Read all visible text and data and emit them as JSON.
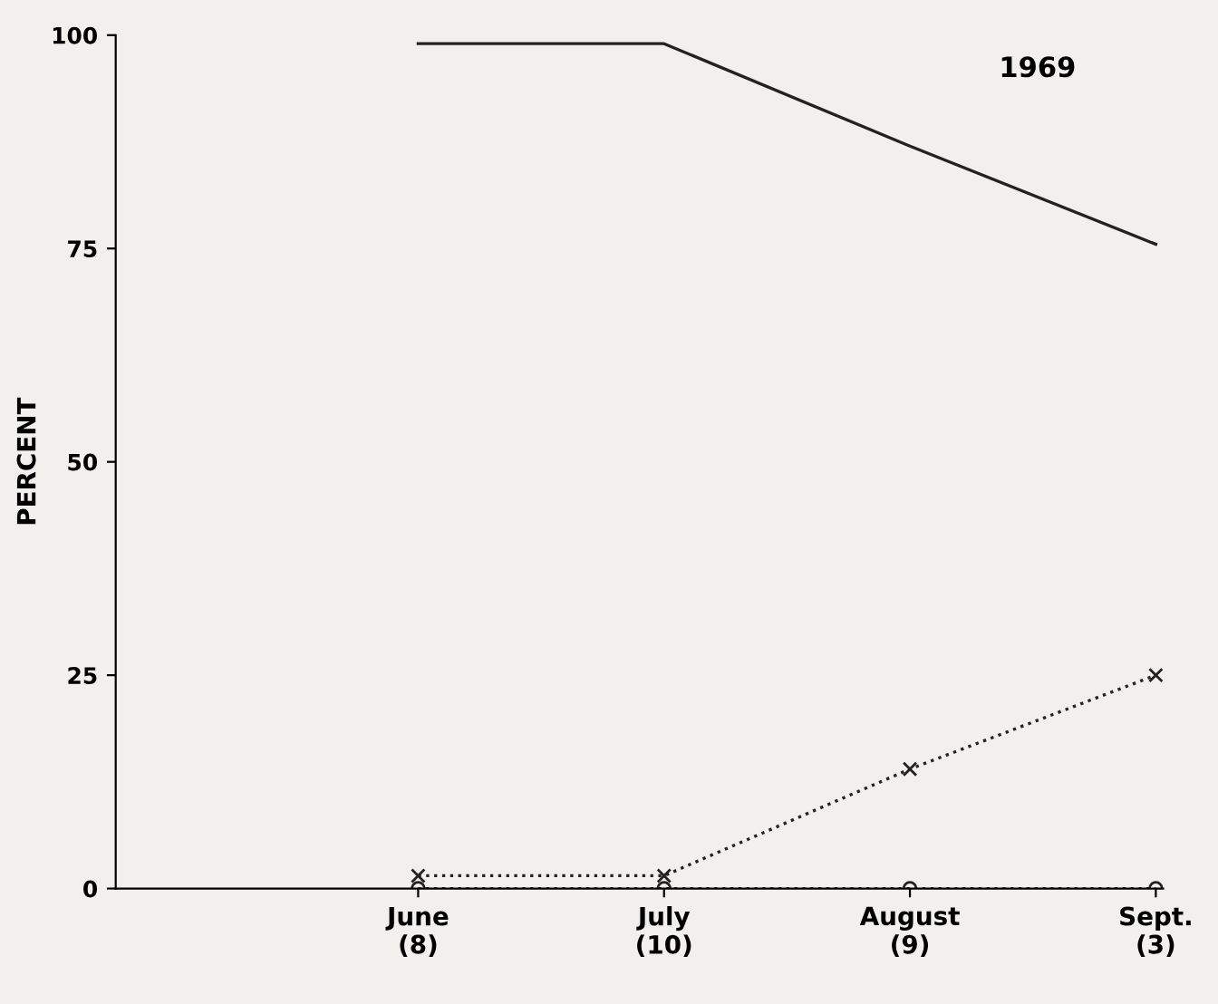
{
  "chart_data": {
    "type": "line",
    "ylabel": "PERCENT",
    "annotations": [
      "1969"
    ],
    "categories": [
      "June\n(8)",
      "July\n(10)",
      "August\n(9)",
      "Sept.\n(3)"
    ],
    "series": [
      {
        "color": "#222222",
        "values": [
          99,
          99,
          87,
          75.5
        ],
        "marker": "none",
        "line_style": "solid"
      },
      {
        "color": "#222222",
        "values": [
          1.5,
          1.5,
          14,
          25
        ],
        "marker": "cross",
        "line_style": "dotted"
      },
      {
        "color": "#222222",
        "values": [
          0,
          0,
          0,
          0
        ],
        "marker": "circle",
        "line_style": "dotted"
      }
    ],
    "ylim": [
      0,
      100
    ],
    "yticks": [
      0,
      25,
      50,
      75,
      100
    ],
    "grid": false,
    "legend": false
  }
}
